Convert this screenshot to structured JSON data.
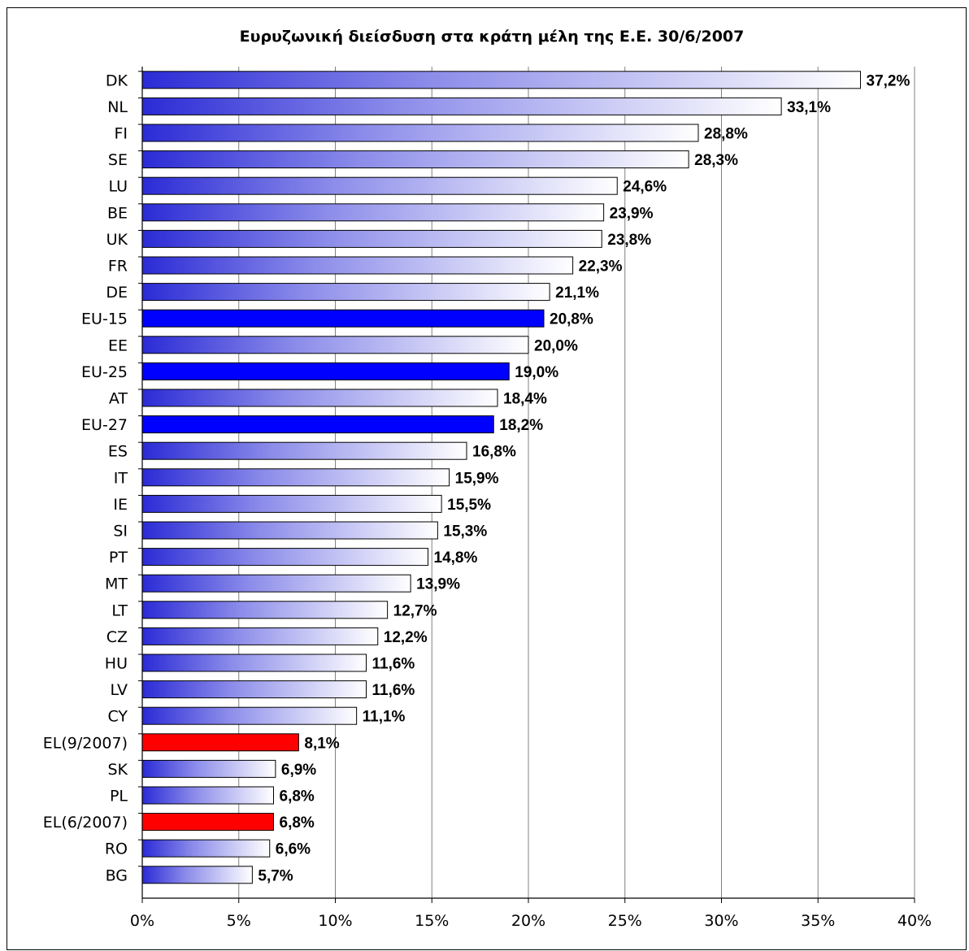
{
  "chart_data": {
    "type": "bar",
    "orientation": "horizontal",
    "title": "Ευρυζωνική διείσδυση στα κράτη μέλη της Ε.Ε. 30/6/2007",
    "categories": [
      "DK",
      "NL",
      "FI",
      "SE",
      "LU",
      "BE",
      "UK",
      "FR",
      "DE",
      "EU-15",
      "EE",
      "EU-25",
      "AT",
      "EU-27",
      "ES",
      "IT",
      "IE",
      "SI",
      "PT",
      "MT",
      "LT",
      "CZ",
      "HU",
      "LV",
      "CY",
      "EL(9/2007)",
      "SK",
      "PL",
      "EL(6/2007)",
      "RO",
      "BG"
    ],
    "values": [
      37.2,
      33.1,
      28.8,
      28.3,
      24.6,
      23.9,
      23.8,
      22.3,
      21.1,
      20.8,
      20.0,
      19.0,
      18.4,
      18.2,
      16.8,
      15.9,
      15.5,
      15.3,
      14.8,
      13.9,
      12.7,
      12.2,
      11.6,
      11.6,
      11.1,
      8.1,
      6.9,
      6.8,
      6.8,
      6.6,
      5.7
    ],
    "value_labels": [
      "37,2%",
      "33,1%",
      "28,8%",
      "28,3%",
      "24,6%",
      "23,9%",
      "23,8%",
      "22,3%",
      "21,1%",
      "20,8%",
      "20,0%",
      "19,0%",
      "18,4%",
      "18,2%",
      "16,8%",
      "15,9%",
      "15,5%",
      "15,3%",
      "14,8%",
      "13,9%",
      "12,7%",
      "12,2%",
      "11,6%",
      "11,6%",
      "11,1%",
      "8,1%",
      "6,9%",
      "6,8%",
      "6,8%",
      "6,6%",
      "5,7%"
    ],
    "highlight": {
      "EU-15": "blue",
      "EU-25": "blue",
      "EU-27": "blue",
      "EL(9/2007)": "red",
      "EL(6/2007)": "red"
    },
    "colors": {
      "default_gradient_start": "#2b2bd6",
      "default_gradient_end": "#ffffff",
      "highlight_blue": "#0000ff",
      "highlight_red": "#ff0000",
      "bar_outline": "#000000",
      "gridline": "#808080"
    },
    "xticks": [
      "0%",
      "5%",
      "10%",
      "15%",
      "20%",
      "25%",
      "30%",
      "35%",
      "40%"
    ],
    "xlim": [
      0,
      40
    ],
    "xlabel": "",
    "ylabel": "",
    "grid": "vertical",
    "legend": "none"
  }
}
